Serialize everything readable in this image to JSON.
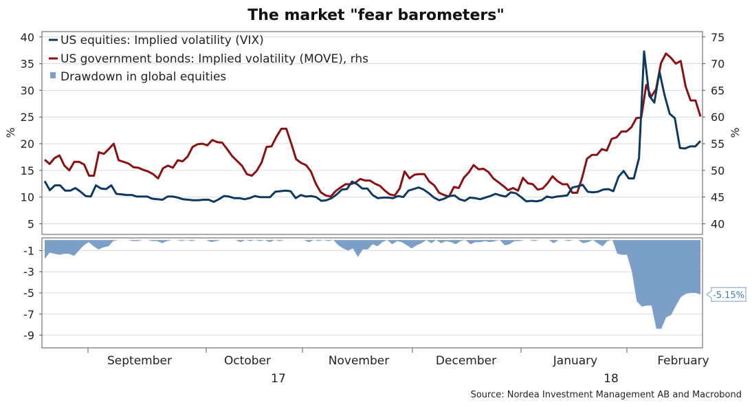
{
  "chart_data": {
    "title": "The market \"fear barometers\"",
    "source": "Source: Nordea Investment Management AB and Macrobond",
    "type": "line",
    "x_months": [
      "September",
      "October",
      "November",
      "December",
      "January",
      "February"
    ],
    "x_years": [
      "17",
      "18"
    ],
    "colors": {
      "vix": "#0d3960",
      "move": "#8b0e10",
      "drawdown": "#7b9fc7"
    },
    "upper_panel": {
      "ylim_left": [
        3,
        41
      ],
      "ylim_right": [
        38,
        76
      ],
      "left_ticks": [
        "5",
        "10",
        "15",
        "20",
        "25",
        "30",
        "35",
        "40"
      ],
      "right_ticks": [
        "40",
        "45",
        "50",
        "55",
        "60",
        "65",
        "70",
        "75"
      ],
      "left_label": "%",
      "right_label": "%",
      "series": [
        {
          "name": "US equities: Implied volatility (VIX)",
          "axis": "left",
          "values": [
            13,
            11.3,
            12.2,
            12.2,
            11.2,
            11.2,
            11.7,
            11,
            10.2,
            10.1,
            12.2,
            11.6,
            11.5,
            12.2,
            10.6,
            10.5,
            10.4,
            10.4,
            10.1,
            10.1,
            10.1,
            9.7,
            9.6,
            9.5,
            10.1,
            10.1,
            9.9,
            9.6,
            9.5,
            9.4,
            9.4,
            9.5,
            9.5,
            9.1,
            9.6,
            10.2,
            10.1,
            9.8,
            9.8,
            9.6,
            9.8,
            10.2,
            10,
            10,
            10,
            11,
            11.1,
            11.2,
            11.1,
            9.8,
            10.4,
            10.1,
            10.2,
            10,
            9.3,
            9.4,
            9.8,
            10.5,
            11.4,
            11.5,
            12.9,
            12.4,
            11.6,
            11.6,
            10.4,
            9.8,
            9.9,
            9.9,
            9.8,
            10.2,
            10,
            11.2,
            11.5,
            11.8,
            11.4,
            10.7,
            9.9,
            9.4,
            9.7,
            10.2,
            10.3,
            9.6,
            9.3,
            9.9,
            9.8,
            9.6,
            9.9,
            10.2,
            10.6,
            10.3,
            10.1,
            10.9,
            10.7,
            10,
            9.2,
            9.3,
            9.2,
            9.4,
            10.1,
            9.9,
            10.1,
            10.2,
            10.3,
            11.8,
            12,
            12.3,
            11,
            10.9,
            11,
            11.4,
            11.5,
            11.1,
            13.8,
            14.9,
            13.5,
            13.5,
            17.3,
            37.3,
            29,
            27.7,
            33.5,
            29.1,
            25.6,
            24.8,
            19.2,
            19.1,
            19.5,
            19.5,
            20.5
          ]
        },
        {
          "name": "US government bonds: Implied volatility (MOVE), rhs",
          "axis": "right",
          "values": [
            52,
            51.2,
            52.3,
            52.8,
            50.9,
            50,
            51.6,
            51.6,
            51.1,
            49,
            49,
            53.4,
            53.1,
            54,
            55,
            51.9,
            51.6,
            51.3,
            50.6,
            50.5,
            50.1,
            49.8,
            49.3,
            48.5,
            50.4,
            50.9,
            50.5,
            51.9,
            51.7,
            52.6,
            54.4,
            54.9,
            55,
            54.7,
            55.7,
            55.3,
            55.2,
            54,
            52.7,
            51.8,
            50.9,
            49.3,
            49,
            49.9,
            51.5,
            54.4,
            54.5,
            56.3,
            57.8,
            57.8,
            55.1,
            52.1,
            51.4,
            51,
            49.8,
            47.5,
            45.9,
            45.3,
            45.1,
            46.1,
            46.8,
            47.4,
            47.4,
            47.7,
            48.4,
            48.1,
            48.1,
            47.5,
            47.1,
            46.2,
            45.5,
            45.3,
            46.6,
            49.8,
            48.5,
            49.2,
            49.3,
            49.3,
            47.9,
            47.2,
            45.8,
            45.4,
            45.1,
            46.9,
            46.7,
            48.6,
            49.6,
            51,
            50.2,
            50.3,
            49.7,
            48.5,
            47.8,
            47.1,
            46.3,
            46.7,
            46.2,
            48.6,
            47.6,
            47.4,
            46.4,
            46.6,
            47.6,
            48.9,
            48,
            47.4,
            47.4,
            45.8,
            45.8,
            48.6,
            52.2,
            52.9,
            52.9,
            54,
            53.7,
            55.9,
            56.2,
            57.3,
            57.3,
            58.1,
            59.8,
            59.9,
            66,
            63.8,
            65.2,
            70.1,
            71.9,
            71.1,
            70,
            70.5,
            65.7,
            63.1,
            63.1,
            60.1
          ]
        }
      ]
    },
    "lower_panel": {
      "ylim": [
        -10.2,
        0.2
      ],
      "ticks": [
        "-1",
        "-3",
        "-5",
        "-7",
        "-9"
      ],
      "series": {
        "name": "Drawdown in global equities",
        "type": "area",
        "values": [
          -1.8,
          -1.2,
          -1.3,
          -1.4,
          -1.3,
          -1.3,
          -1.5,
          -1,
          -0.5,
          -0.2,
          -0.6,
          -0.9,
          -0.7,
          -0.6,
          -0.1,
          0,
          0,
          0,
          -0.1,
          -0.1,
          0,
          0,
          -0.1,
          -0.1,
          -0.3,
          -0.1,
          0,
          0,
          -0.1,
          0,
          -0.1,
          0,
          0,
          0,
          -0.2,
          -0.1,
          0,
          0,
          0,
          0,
          -0.2,
          0,
          -0.1,
          0,
          -0.1,
          0,
          -0.2,
          0,
          -0.1,
          0,
          0,
          0,
          0,
          0,
          -0.2,
          0,
          -0.1,
          0,
          -0.1,
          0,
          -0.5,
          -0.8,
          -1,
          -0.8,
          -1.6,
          -0.9,
          -0.9,
          -0.4,
          -0.6,
          -0.2,
          0,
          -0.4,
          -0.1,
          -0.2,
          -0.5,
          -0.8,
          -0.5,
          -0.3,
          0,
          -0.3,
          0,
          -0.3,
          -0.1,
          -0.2,
          -0.4,
          -0.1,
          0,
          -0.4,
          -0.2,
          -0.2,
          -0.1,
          -0.2,
          -0.1,
          0,
          -0.5,
          -0.4,
          -0.1,
          -0.1,
          0,
          0,
          -0.1,
          0,
          0,
          0,
          -0.3,
          0,
          0,
          -0.1,
          0,
          0,
          -0.3,
          -0.2,
          0,
          -0.3,
          -0.6,
          -0.1,
          0,
          -1.3,
          -1.4,
          -1.4,
          -3,
          -5.8,
          -6.3,
          -6.2,
          -6.2,
          -8.4,
          -8.4,
          -7.3,
          -7.1,
          -6.2,
          -5.4,
          -5.1,
          -5,
          -5,
          -5.15
        ],
        "callout": "-5.15%"
      }
    },
    "legend": [
      {
        "label": "US equities: Implied volatility (VIX)",
        "key": "vix"
      },
      {
        "label": "US government bonds: Implied volatility (MOVE), rhs",
        "key": "move"
      },
      {
        "label": "Drawdown in global equities",
        "key": "drawdown"
      }
    ]
  }
}
